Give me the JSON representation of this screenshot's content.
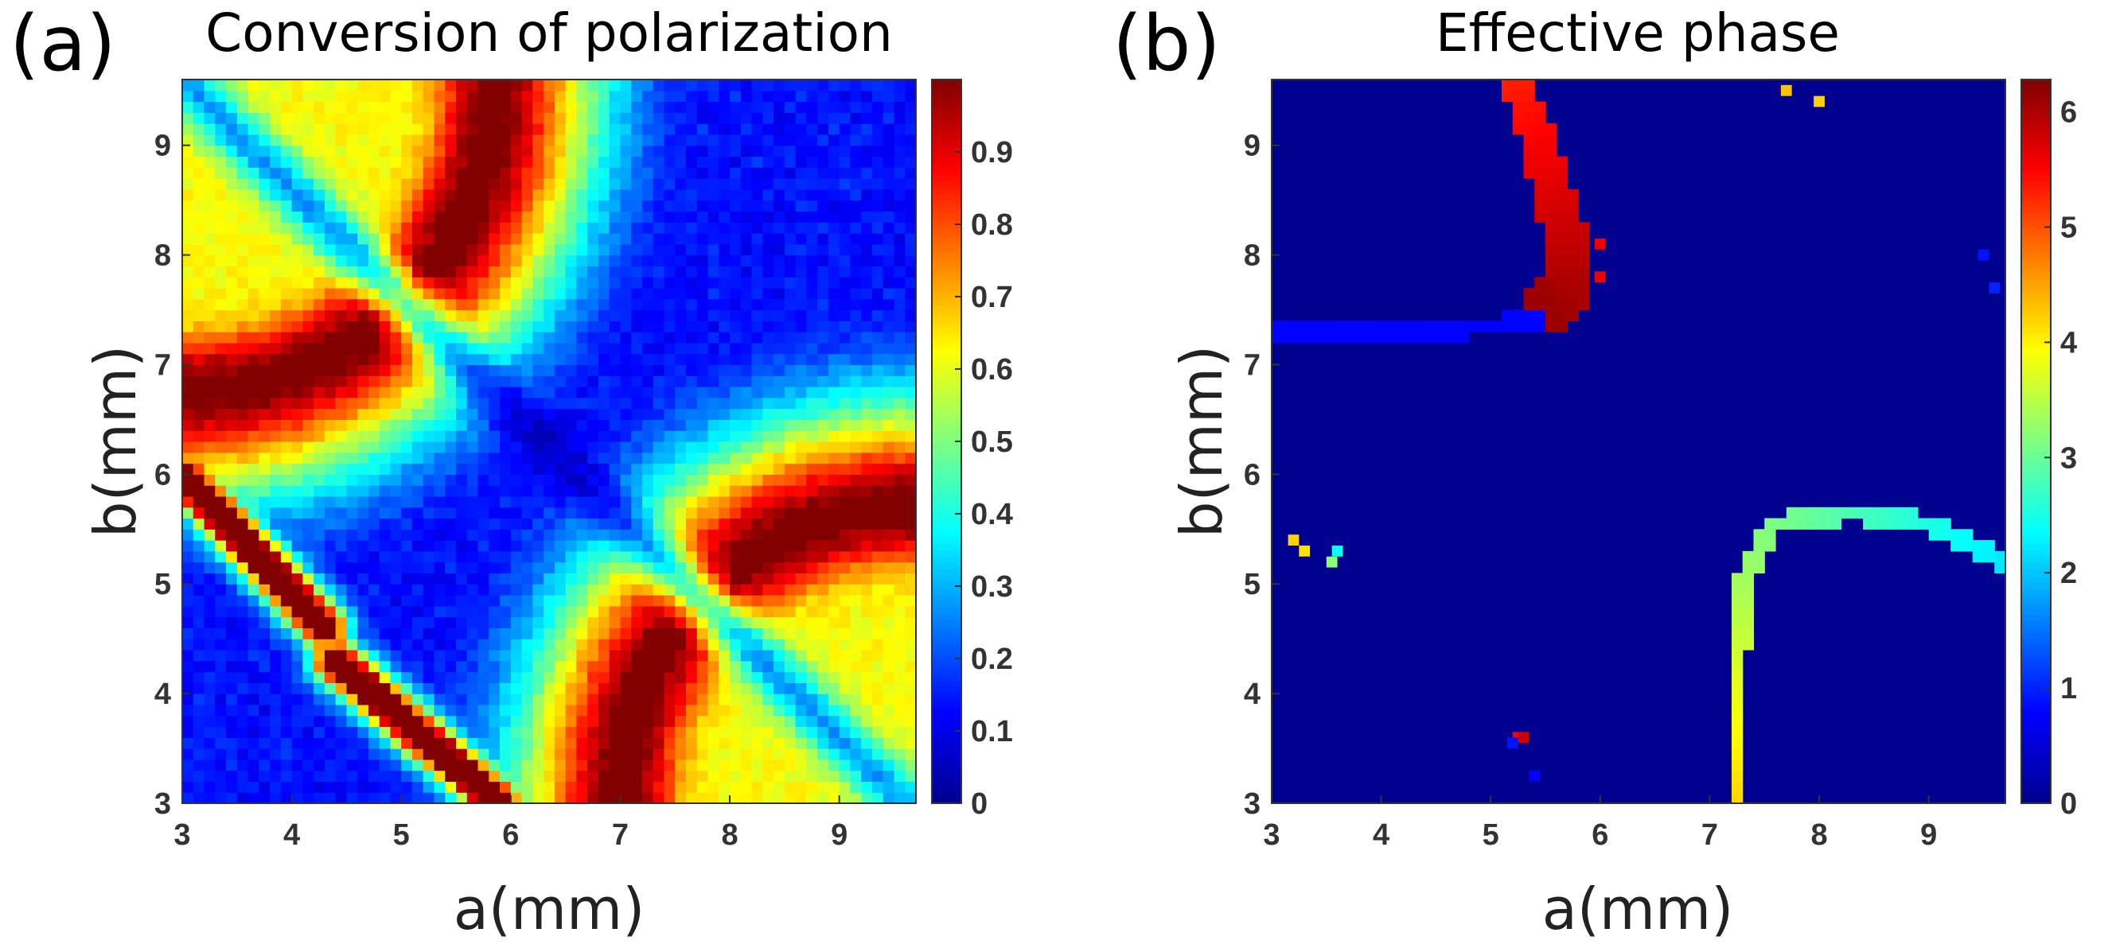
{
  "chart_data": [
    {
      "type": "heatmap",
      "panel_label": "(a)",
      "title": "Conversion of polarization",
      "xlabel": "a(mm)",
      "ylabel": "b(mm)",
      "xlim": [
        3,
        9.7
      ],
      "ylim": [
        3,
        9.6
      ],
      "xticks": [
        "3",
        "4",
        "5",
        "6",
        "7",
        "8",
        "9"
      ],
      "yticks": [
        "3",
        "4",
        "5",
        "6",
        "7",
        "8",
        "9"
      ],
      "xtick_values": [
        3,
        4,
        5,
        6,
        7,
        8,
        9
      ],
      "ytick_values": [
        3,
        4,
        5,
        6,
        7,
        8,
        9
      ],
      "colormap": "jet",
      "colorbar": {
        "range": [
          0,
          1
        ],
        "ticks": [
          "0",
          "0.1",
          "0.2",
          "0.3",
          "0.4",
          "0.5",
          "0.6",
          "0.7",
          "0.8",
          "0.9"
        ],
        "tick_values": [
          0,
          0.1,
          0.2,
          0.3,
          0.4,
          0.5,
          0.6,
          0.7,
          0.8,
          0.9
        ]
      },
      "features": {
        "description_note": "approximate structure of the map",
        "background_level": 0.12,
        "lobes": [
          {
            "corner": "top-left",
            "center": [
              3.0,
              9.6
            ],
            "ring_radius": 2.7,
            "ring_value": 0.97,
            "inside_value": 0.62
          },
          {
            "corner": "bottom-right",
            "center": [
              9.7,
              3.0
            ],
            "ring_radius": 2.55,
            "ring_value": 0.97,
            "inside_value": 0.62
          }
        ],
        "diagonal_streaks": [
          {
            "from": [
              3.0,
              6.0
            ],
            "to": [
              4.3,
              4.6
            ],
            "peak": 0.95
          },
          {
            "from": [
              4.4,
              4.3
            ],
            "to": [
              5.9,
              3.0
            ],
            "peak": 0.95
          }
        ]
      }
    },
    {
      "type": "heatmap",
      "panel_label": "(b)",
      "title": "Effective phase",
      "xlabel": "a(mm)",
      "ylabel": "b(mm)",
      "xlim": [
        3,
        9.7
      ],
      "ylim": [
        3,
        9.6
      ],
      "xticks": [
        "3",
        "4",
        "5",
        "6",
        "7",
        "8",
        "9"
      ],
      "yticks": [
        "3",
        "4",
        "5",
        "6",
        "7",
        "8",
        "9"
      ],
      "xtick_values": [
        3,
        4,
        5,
        6,
        7,
        8,
        9
      ],
      "ytick_values": [
        3,
        4,
        5,
        6,
        7,
        8,
        9
      ],
      "colormap": "jet",
      "colorbar": {
        "range": [
          0,
          6.28
        ],
        "ticks": [
          "0",
          "1",
          "2",
          "3",
          "4",
          "5",
          "6"
        ],
        "tick_values": [
          0,
          1,
          2,
          3,
          4,
          5,
          6
        ]
      },
      "features": {
        "description_note": "phase is nonzero only along narrow curves",
        "background_level": 0,
        "curves": [
          {
            "name": "left-horizontal",
            "points": [
              [
                3.0,
                7.28
              ],
              [
                4.0,
                7.3
              ],
              [
                5.0,
                7.35
              ],
              [
                5.4,
                7.4
              ]
            ],
            "value": 0.8
          },
          {
            "name": "upper-arc",
            "points": [
              [
                5.2,
                9.6
              ],
              [
                5.45,
                9.0
              ],
              [
                5.65,
                8.3
              ],
              [
                5.7,
                7.7
              ],
              [
                5.55,
                7.55
              ]
            ],
            "value_start": 5.3,
            "value_end": 6.1
          },
          {
            "name": "lower-arc",
            "points": [
              [
                7.25,
                3.0
              ],
              [
                7.25,
                4.2
              ],
              [
                7.3,
                5.0
              ],
              [
                7.6,
                5.55
              ],
              [
                8.3,
                5.65
              ],
              [
                9.0,
                5.55
              ],
              [
                9.7,
                5.2
              ]
            ],
            "value_start": 4.2,
            "value_end": 2.2
          }
        ],
        "scattered_pixels": [
          {
            "x": 3.2,
            "y": 5.4,
            "value": 4.2
          },
          {
            "x": 3.3,
            "y": 5.3,
            "value": 4.1
          },
          {
            "x": 3.55,
            "y": 5.2,
            "value": 3.2
          },
          {
            "x": 3.6,
            "y": 5.3,
            "value": 2.4
          },
          {
            "x": 5.25,
            "y": 3.6,
            "value": 5.5
          },
          {
            "x": 5.3,
            "y": 3.6,
            "value": 5.8
          },
          {
            "x": 5.2,
            "y": 3.55,
            "value": 0.9
          },
          {
            "x": 5.4,
            "y": 3.25,
            "value": 0.8
          },
          {
            "x": 7.7,
            "y": 9.5,
            "value": 4.3
          },
          {
            "x": 8.0,
            "y": 9.4,
            "value": 4.2
          },
          {
            "x": 9.5,
            "y": 8.0,
            "value": 0.9
          },
          {
            "x": 9.6,
            "y": 7.7,
            "value": 1.0
          },
          {
            "x": 6.0,
            "y": 8.1,
            "value": 5.6
          },
          {
            "x": 6.0,
            "y": 7.8,
            "value": 5.6
          }
        ]
      }
    }
  ]
}
